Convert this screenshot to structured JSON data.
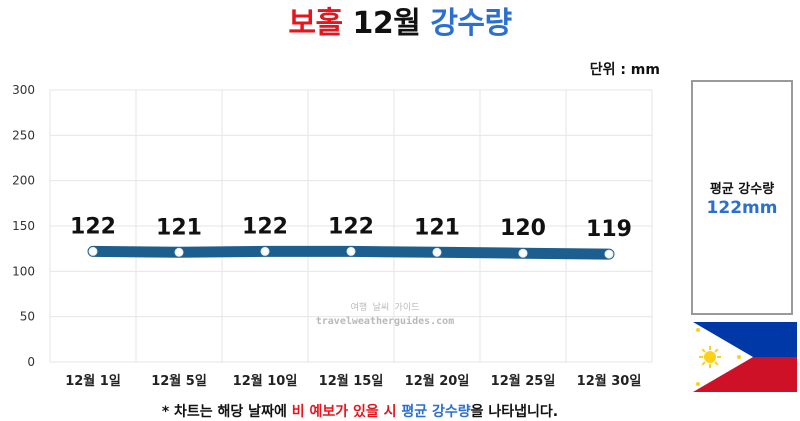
{
  "title": {
    "part1": "보홀",
    "part2": "12월",
    "part3": "강수량",
    "color1": "#e8141c",
    "color2": "#111111",
    "color3": "#2b6fd1"
  },
  "unit_label": "단위 : mm",
  "average": {
    "label": "평균 강수량",
    "value": "122mm"
  },
  "watermark": {
    "line1": "여행 날씨 가이드",
    "line2": "travelweatherguides.com"
  },
  "footnote": {
    "prefix": "* 차트는 해당 날짜에 ",
    "red_part": "비 예보가 있을 시",
    "middle": " ",
    "blue_part": "평균 강수량",
    "suffix": "을 나타냅니다."
  },
  "flag": {
    "name": "philippines-flag-icon",
    "blue": "#0038a8",
    "red": "#ce1126",
    "white": "#ffffff",
    "sun": "#fcd116"
  },
  "chart_data": {
    "type": "line",
    "categories": [
      "12월 1일",
      "12월 5일",
      "12월 10일",
      "12월 15일",
      "12월 20일",
      "12월 25일",
      "12월 30일"
    ],
    "values": [
      122,
      121,
      122,
      122,
      121,
      120,
      119
    ],
    "data_labels": [
      "122",
      "121",
      "122",
      "122",
      "121",
      "120",
      "119"
    ],
    "ylim": [
      0,
      300
    ],
    "yticks": [
      0,
      50,
      100,
      150,
      200,
      250,
      300
    ],
    "grid": true,
    "line_color": "#1c5f8e",
    "marker_color": "#ffffff",
    "xlabel": "",
    "ylabel": ""
  }
}
